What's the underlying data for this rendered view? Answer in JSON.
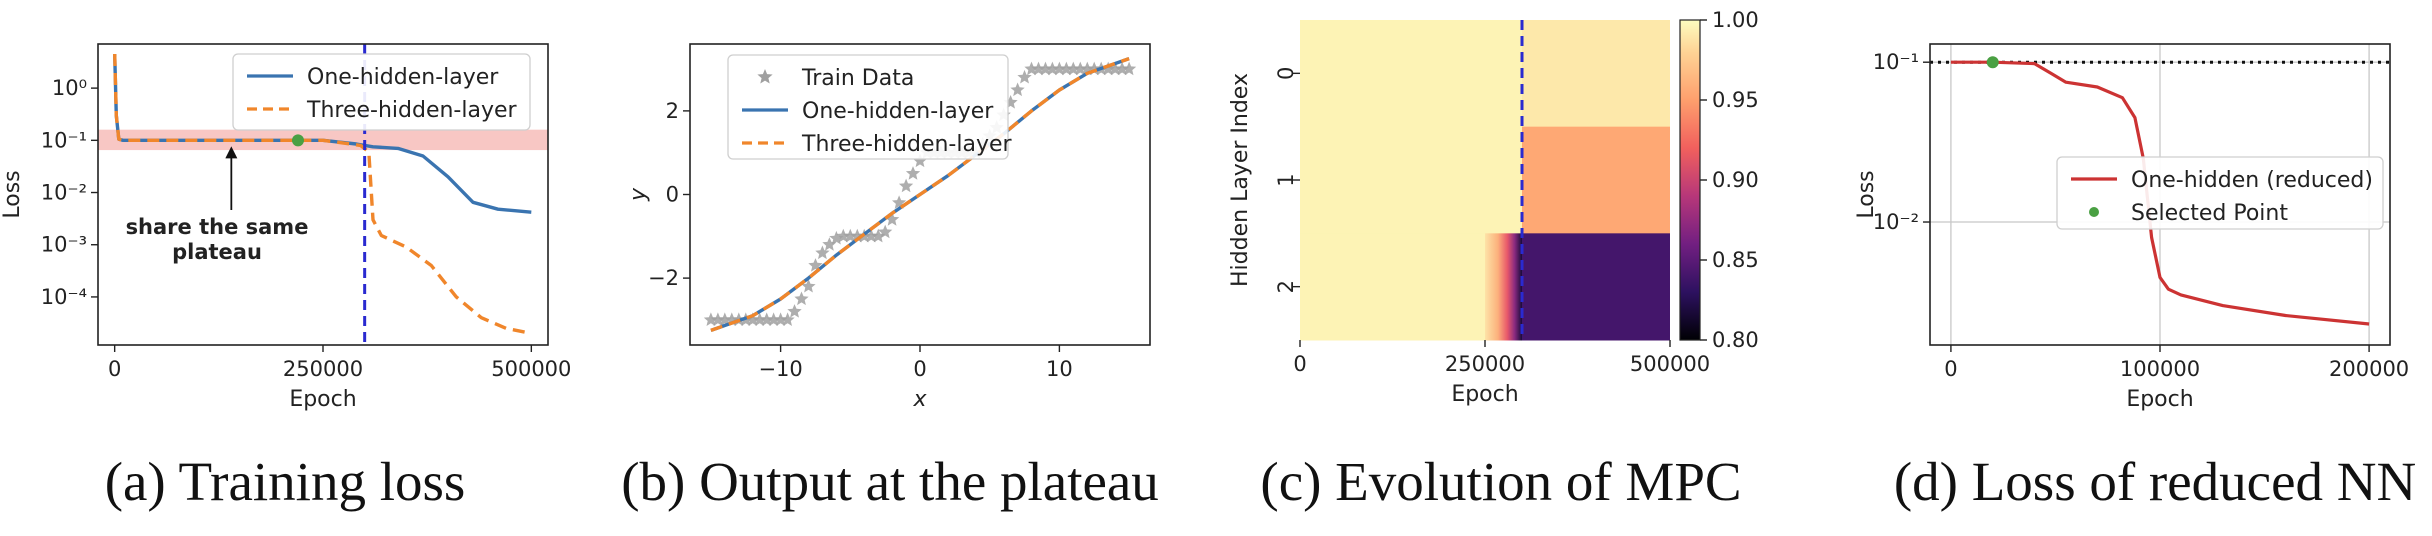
{
  "colors": {
    "blue": "#3a74b0",
    "orange": "#f0862b",
    "red": "#cc3333",
    "green": "#4aa043",
    "gray": "#a0a0a0",
    "vline": "#2a2ad0",
    "band": "#f6b4b0"
  },
  "chart_data": [
    {
      "id": "a",
      "type": "line",
      "caption": "(a) Training loss",
      "xlabel": "Epoch",
      "ylabel": "Loss",
      "yscale": "log",
      "xlim": [
        -20000,
        520000
      ],
      "ylim": [
        1.2e-05,
        7
      ],
      "xticks": [
        0,
        250000,
        500000
      ],
      "xticklabels": [
        "0",
        "250000",
        "500000"
      ],
      "yticks": [
        1,
        0.1,
        0.01,
        0.001,
        0.0001
      ],
      "yticklabels": [
        "10⁰",
        "10⁻¹",
        "10⁻²",
        "10⁻³",
        "10⁻⁴"
      ],
      "legend": "top-right",
      "series": [
        {
          "name": "One-hidden-layer",
          "color": "blue",
          "dash": "solid",
          "x": [
            0,
            2000,
            5000,
            10000,
            50000,
            150000,
            250000,
            290000,
            310000,
            340000,
            370000,
            400000,
            430000,
            460000,
            500000
          ],
          "y": [
            4.5,
            0.3,
            0.105,
            0.1,
            0.1,
            0.1,
            0.1,
            0.085,
            0.075,
            0.07,
            0.05,
            0.02,
            0.0065,
            0.0048,
            0.0042
          ]
        },
        {
          "name": "Three-hidden-layer",
          "color": "orange",
          "dash": "dashed",
          "x": [
            0,
            2000,
            5000,
            10000,
            50000,
            150000,
            250000,
            295000,
            305000,
            310000,
            320000,
            350000,
            380000,
            410000,
            440000,
            470000,
            500000
          ],
          "y": [
            4.5,
            0.3,
            0.105,
            0.1,
            0.1,
            0.1,
            0.1,
            0.08,
            0.06,
            0.003,
            0.0015,
            0.0009,
            0.0004,
            0.0001,
            4e-05,
            2.5e-05,
            2e-05
          ]
        }
      ],
      "band": {
        "ymin": 0.065,
        "ymax": 0.16
      },
      "vline": 300000,
      "point": {
        "x": 220000,
        "y": 0.1
      },
      "annotation": {
        "text_lines": [
          "share the same",
          "plateau"
        ],
        "arrow_to": {
          "x": 140000,
          "y": 0.1
        }
      }
    },
    {
      "id": "b",
      "type": "line",
      "caption": "(b) Output at the plateau",
      "xlabel": "x",
      "ylabel": "y",
      "xlim": [
        -16.5,
        16.5
      ],
      "ylim": [
        -3.6,
        3.6
      ],
      "xticks": [
        -10,
        0,
        10
      ],
      "xticklabels": [
        "−10",
        "0",
        "10"
      ],
      "yticks": [
        2,
        0,
        -2
      ],
      "yticklabels": [
        "2",
        "0",
        "−2"
      ],
      "legend": "top-left",
      "series": [
        {
          "name": "Train Data",
          "color": "gray",
          "marker": "star",
          "x": [
            -15,
            -14.5,
            -14,
            -13.5,
            -13,
            -12.5,
            -12,
            -11.5,
            -11,
            -10.5,
            -10,
            -9.5,
            -9,
            -8.5,
            -8,
            -7.5,
            -7,
            -6.5,
            -6,
            -5.5,
            -5,
            -4.5,
            -4,
            -3.5,
            -3,
            -2.5,
            -2,
            -1.5,
            -1,
            -0.5,
            0,
            0.5,
            1,
            1.5,
            2,
            2.5,
            3,
            3.5,
            4,
            4.5,
            5,
            5.5,
            6,
            6.5,
            7,
            7.5,
            8,
            8.5,
            9,
            9.5,
            10,
            10.5,
            11,
            11.5,
            12,
            12.5,
            13,
            13.5,
            14,
            14.5,
            15
          ],
          "y": [
            -3,
            -3,
            -3,
            -3,
            -3,
            -3,
            -3,
            -3,
            -3,
            -3,
            -3,
            -3,
            -2.8,
            -2.5,
            -2.2,
            -1.7,
            -1.4,
            -1.2,
            -1.05,
            -1,
            -1,
            -1,
            -1,
            -1,
            -1,
            -0.9,
            -0.6,
            -0.2,
            0.2,
            0.5,
            0.8,
            1,
            1,
            1,
            1,
            1,
            1,
            1,
            1,
            1.2,
            1.4,
            1.6,
            1.9,
            2.2,
            2.5,
            2.8,
            3,
            3,
            3,
            3,
            3,
            3,
            3,
            3,
            3,
            3,
            3,
            3,
            3,
            3,
            3
          ]
        },
        {
          "name": "One-hidden-layer",
          "color": "blue",
          "dash": "solid",
          "x": [
            -15,
            -12,
            -10,
            -8,
            -6,
            -4,
            -2,
            0,
            2,
            4,
            6,
            8,
            10,
            12,
            15
          ],
          "y": [
            -3.25,
            -2.9,
            -2.5,
            -2.0,
            -1.45,
            -0.95,
            -0.45,
            0.0,
            0.45,
            0.95,
            1.45,
            2.0,
            2.5,
            2.9,
            3.25
          ]
        },
        {
          "name": "Three-hidden-layer",
          "color": "orange",
          "dash": "dashed",
          "x": [
            -15,
            -12,
            -10,
            -8,
            -6,
            -4,
            -2,
            0,
            2,
            4,
            6,
            8,
            10,
            12,
            15
          ],
          "y": [
            -3.25,
            -2.9,
            -2.5,
            -2.0,
            -1.45,
            -0.95,
            -0.45,
            0.0,
            0.45,
            0.95,
            1.45,
            2.0,
            2.5,
            2.9,
            3.25
          ]
        }
      ]
    },
    {
      "id": "c",
      "type": "heatmap",
      "caption": "(c) Evolution of MPC",
      "xlabel": "Epoch",
      "ylabel": "Hidden Layer Index",
      "xlim": [
        0,
        500000
      ],
      "xticks": [
        0,
        250000,
        500000
      ],
      "xticklabels": [
        "0",
        "250000",
        "500000"
      ],
      "rows": [
        "0",
        "1",
        "2"
      ],
      "colorbar": {
        "min": 0.8,
        "max": 1.0,
        "ticks": [
          "1.00",
          "0.95",
          "0.90",
          "0.85",
          "0.80"
        ],
        "tick_values": [
          1.0,
          0.95,
          0.9,
          0.85,
          0.8
        ]
      },
      "values": [
        {
          "row": "0",
          "segments": [
            {
              "x0": 0,
              "x1": 300000,
              "v": 0.995
            },
            {
              "x0": 300000,
              "x1": 500000,
              "v": 0.99
            }
          ]
        },
        {
          "row": "1",
          "segments": [
            {
              "x0": 0,
              "x1": 300000,
              "v": 0.995
            },
            {
              "x0": 300000,
              "x1": 500000,
              "v": 0.955
            }
          ]
        },
        {
          "row": "2",
          "segments": [
            {
              "x0": 0,
              "x1": 250000,
              "v": 0.995
            },
            {
              "x0": 250000,
              "x1": 300000,
              "v": "gradient",
              "from": 0.995,
              "to": 0.8
            },
            {
              "x0": 300000,
              "x1": 500000,
              "v": 0.84
            }
          ]
        }
      ],
      "vline": 300000
    },
    {
      "id": "d",
      "type": "line",
      "caption": "(d) Loss of reduced NN",
      "xlabel": "Epoch",
      "ylabel": "Loss",
      "yscale": "log",
      "grid": true,
      "xlim": [
        -10000,
        210000
      ],
      "ylim": [
        0.0017,
        0.13
      ],
      "xticks": [
        0,
        100000,
        200000
      ],
      "xticklabels": [
        "0",
        "100000",
        "200000"
      ],
      "yticks": [
        0.1,
        0.01
      ],
      "yticklabels": [
        "10⁻¹",
        "10⁻²"
      ],
      "legend": "center-right",
      "series": [
        {
          "name": "One-hidden (reduced)",
          "color": "red",
          "dash": "solid",
          "x": [
            0,
            20000,
            40000,
            48000,
            55000,
            70000,
            82000,
            88000,
            92000,
            96000,
            100000,
            104000,
            110000,
            130000,
            160000,
            200000
          ],
          "y": [
            0.1,
            0.1,
            0.098,
            0.085,
            0.075,
            0.07,
            0.06,
            0.045,
            0.025,
            0.008,
            0.0045,
            0.0038,
            0.0035,
            0.003,
            0.0026,
            0.0023
          ]
        },
        {
          "name": "Selected Point",
          "color": "green",
          "marker": "dot",
          "x": [
            20000
          ],
          "y": [
            0.1
          ]
        }
      ],
      "hline": 0.1
    }
  ]
}
